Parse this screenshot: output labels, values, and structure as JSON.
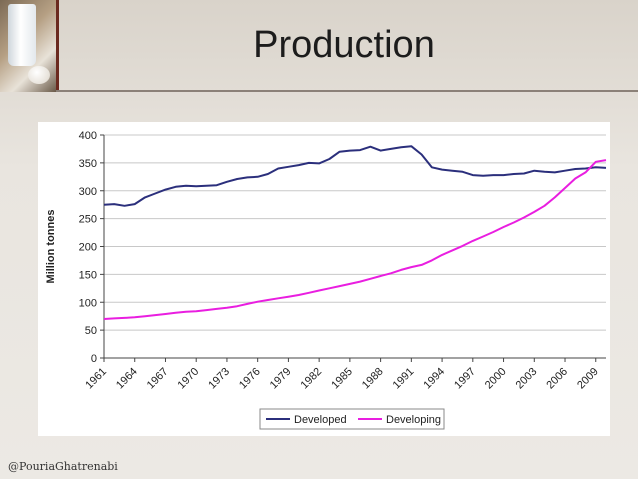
{
  "slide": {
    "title": "Production",
    "footer": "@PouriaGhatrenabi"
  },
  "chart_data": {
    "type": "line",
    "title": "",
    "xlabel": "",
    "ylabel": "Million tonnes",
    "ylim": [
      0,
      400
    ],
    "yticks": [
      0,
      50,
      100,
      150,
      200,
      250,
      300,
      350,
      400
    ],
    "xlim": [
      1961,
      2010
    ],
    "xticks": [
      1961,
      1964,
      1967,
      1970,
      1973,
      1976,
      1979,
      1982,
      1985,
      1988,
      1991,
      1994,
      1997,
      2000,
      2003,
      2006,
      2009
    ],
    "legend_position": "bottom-center",
    "series": [
      {
        "name": "Developed",
        "color": "#2b2f7c",
        "x": [
          1961,
          1962,
          1963,
          1964,
          1965,
          1966,
          1967,
          1968,
          1969,
          1970,
          1971,
          1972,
          1973,
          1974,
          1975,
          1976,
          1977,
          1978,
          1979,
          1980,
          1981,
          1982,
          1983,
          1984,
          1985,
          1986,
          1987,
          1988,
          1989,
          1990,
          1991,
          1992,
          1993,
          1994,
          1995,
          1996,
          1997,
          1998,
          1999,
          2000,
          2001,
          2002,
          2003,
          2004,
          2005,
          2006,
          2007,
          2008,
          2009,
          2010
        ],
        "values": [
          275,
          276,
          273,
          276,
          288,
          295,
          302,
          307,
          309,
          308,
          309,
          310,
          316,
          321,
          324,
          325,
          330,
          340,
          343,
          346,
          350,
          349,
          357,
          370,
          372,
          373,
          379,
          372,
          375,
          378,
          380,
          365,
          342,
          338,
          336,
          334,
          328,
          327,
          328,
          328,
          330,
          331,
          336,
          334,
          333,
          336,
          339,
          340,
          342,
          341
        ]
      },
      {
        "name": "Developing",
        "color": "#e91ee0",
        "x": [
          1961,
          1962,
          1963,
          1964,
          1965,
          1966,
          1967,
          1968,
          1969,
          1970,
          1971,
          1972,
          1973,
          1974,
          1975,
          1976,
          1977,
          1978,
          1979,
          1980,
          1981,
          1982,
          1983,
          1984,
          1985,
          1986,
          1987,
          1988,
          1989,
          1990,
          1991,
          1992,
          1993,
          1994,
          1995,
          1996,
          1997,
          1998,
          1999,
          2000,
          2001,
          2002,
          2003,
          2004,
          2005,
          2006,
          2007,
          2008,
          2009,
          2010
        ],
        "values": [
          70,
          71,
          72,
          73,
          75,
          77,
          79,
          81,
          83,
          84,
          86,
          88,
          90,
          93,
          97,
          101,
          104,
          107,
          110,
          113,
          117,
          121,
          125,
          129,
          133,
          137,
          142,
          147,
          152,
          158,
          163,
          167,
          175,
          185,
          193,
          201,
          210,
          218,
          226,
          235,
          243,
          252,
          262,
          273,
          288,
          305,
          322,
          333,
          352,
          355
        ]
      }
    ]
  }
}
